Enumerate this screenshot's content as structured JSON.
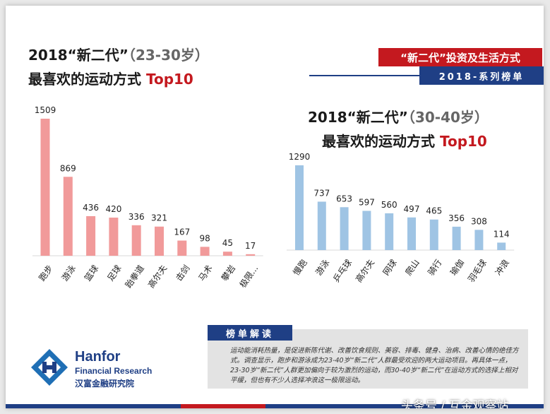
{
  "header": {
    "banner_main": "“新二代”投资及生活方式",
    "banner_sub": "2018-系列榜单"
  },
  "chart_data": [
    {
      "type": "bar",
      "title_line1_main": "2018“新二代”",
      "title_line1_paren": "（23-30岁）",
      "title_line2_main": "最喜欢的运动方式",
      "title_line2_highlight": "Top10",
      "categories": [
        "跑步",
        "游泳",
        "篮球",
        "足球",
        "跆拳道",
        "高尔夫",
        "击剑",
        "马术",
        "攀岩",
        "极限..."
      ],
      "values": [
        1509,
        869,
        436,
        420,
        336,
        321,
        167,
        98,
        45,
        17
      ],
      "color": "#f19a9a"
    },
    {
      "type": "bar",
      "title_line1_main": "2018“新二代”",
      "title_line1_paren": "（30-40岁）",
      "title_line2_main": "最喜欢的运动方式",
      "title_line2_highlight": "Top10",
      "categories": [
        "慢跑",
        "游泳",
        "乒乓球",
        "高尔夫",
        "网球",
        "爬山",
        "骑行",
        "瑜伽",
        "羽毛球",
        "冲浪"
      ],
      "values": [
        1290,
        737,
        653,
        597,
        560,
        497,
        465,
        356,
        308,
        114
      ],
      "color": "#9fc4e4"
    }
  ],
  "note": {
    "tag": "榜单解读",
    "text": "运动能消耗热量，是促进新陈代谢、改善饮食规则、美容、排毒、健身、治病、改善心情的绝佳方式。调查显示，跑步和游泳成为23-40岁“新二代”人群最受欢迎的两大运动项目。再具体一点，23-30岁“新二代”人群更加偏向于较为激烈的运动，而30-40岁“新二代”在运动方式的选择上相对平缓，但也有不少人选择冲浪这一极限运动。"
  },
  "logo": {
    "name": "Hanfor",
    "sub": "Financial Research",
    "cn": "汉富金融研究院",
    "icon": "hanfor-logo-icon"
  },
  "watermark": "头条号 / 互金观察站"
}
